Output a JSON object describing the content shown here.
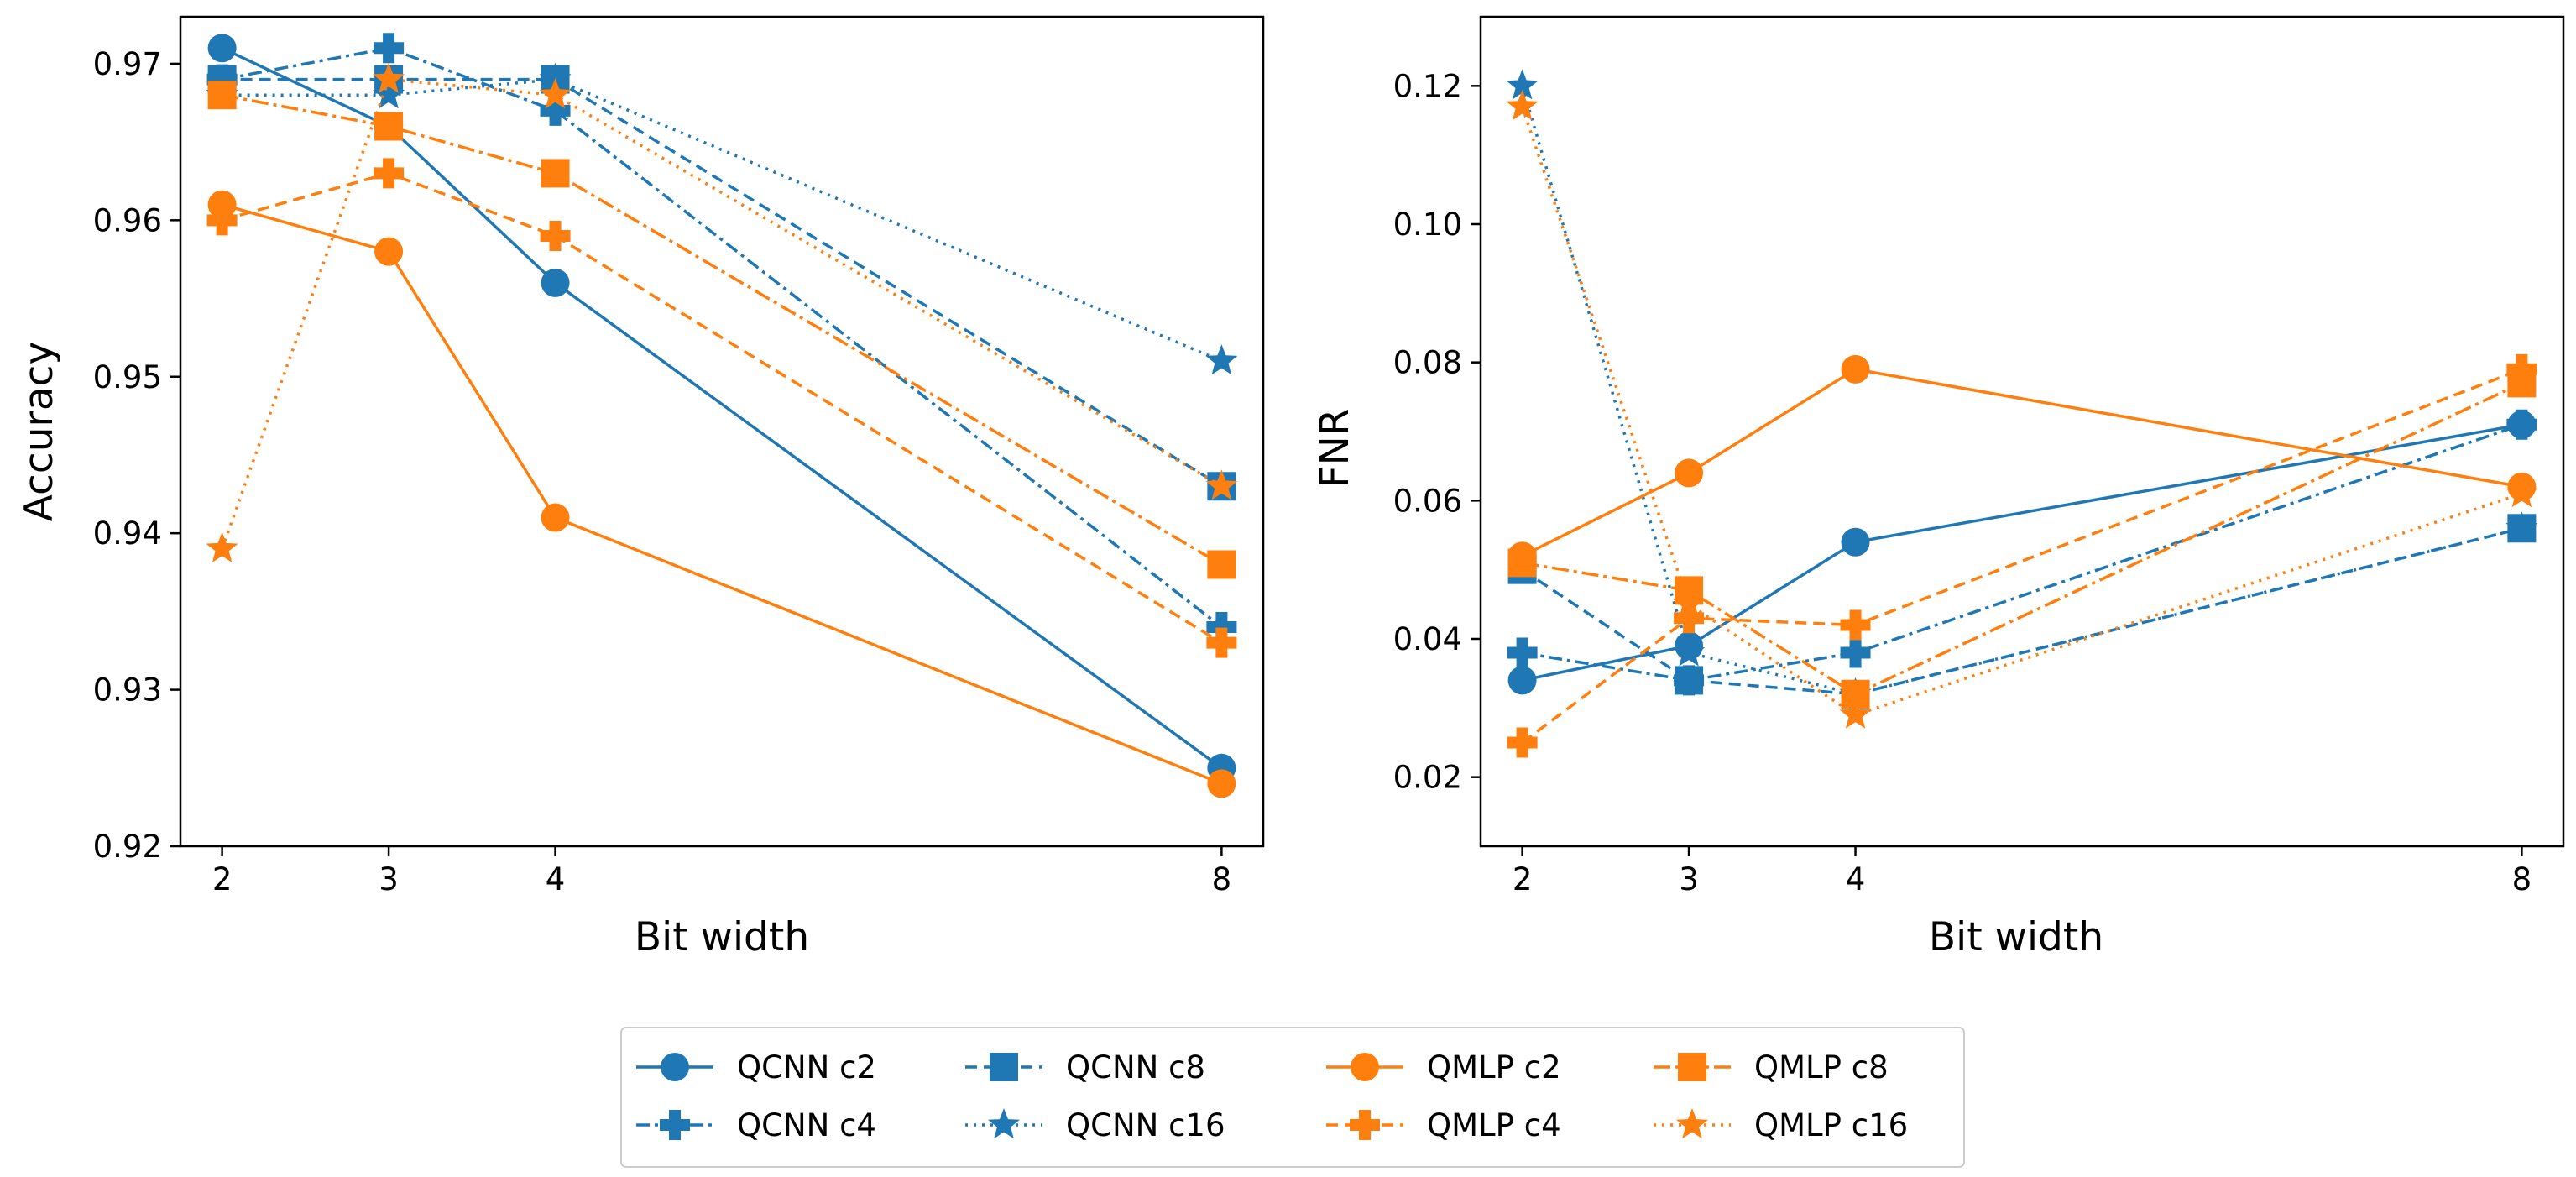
{
  "colors": {
    "QCNN": "#1f77b4",
    "QMLP": "#ff7f0e"
  },
  "chart_data": [
    {
      "type": "line",
      "xlabel": "Bit width",
      "ylabel": "Accuracy",
      "x": [
        2,
        3,
        4,
        8
      ],
      "xticks": [
        "2",
        "3",
        "4",
        "8"
      ],
      "ylim": [
        0.92,
        0.973
      ],
      "yticks": [
        "0.92",
        "0.93",
        "0.94",
        "0.95",
        "0.96",
        "0.97"
      ],
      "series": [
        {
          "name": "QCNN c2",
          "values": [
            0.971,
            0.966,
            0.956,
            0.925
          ]
        },
        {
          "name": "QCNN c4",
          "values": [
            0.969,
            0.971,
            0.967,
            0.934
          ]
        },
        {
          "name": "QCNN c8",
          "values": [
            0.969,
            0.969,
            0.969,
            0.943
          ]
        },
        {
          "name": "QCNN c16",
          "values": [
            0.968,
            0.968,
            0.969,
            0.951
          ]
        },
        {
          "name": "QMLP c2",
          "values": [
            0.961,
            0.958,
            0.941,
            0.924
          ]
        },
        {
          "name": "QMLP c4",
          "values": [
            0.96,
            0.963,
            0.959,
            0.933
          ]
        },
        {
          "name": "QMLP c8",
          "values": [
            0.968,
            0.966,
            0.963,
            0.938
          ]
        },
        {
          "name": "QMLP c16",
          "values": [
            0.939,
            0.969,
            0.968,
            0.943
          ]
        }
      ]
    },
    {
      "type": "line",
      "xlabel": "Bit width",
      "ylabel": "FNR",
      "x": [
        2,
        3,
        4,
        8
      ],
      "xticks": [
        "2",
        "3",
        "4",
        "8"
      ],
      "ylim": [
        0.01,
        0.13
      ],
      "yticks": [
        "0.02",
        "0.04",
        "0.06",
        "0.08",
        "0.10",
        "0.12"
      ],
      "series": [
        {
          "name": "QCNN c2",
          "values": [
            0.034,
            0.039,
            0.054,
            0.071
          ]
        },
        {
          "name": "QCNN c4",
          "values": [
            0.038,
            0.034,
            0.038,
            0.071
          ]
        },
        {
          "name": "QCNN c8",
          "values": [
            0.05,
            0.034,
            0.032,
            0.056
          ]
        },
        {
          "name": "QCNN c16",
          "values": [
            0.12,
            0.038,
            0.032,
            0.056
          ]
        },
        {
          "name": "QMLP c2",
          "values": [
            0.052,
            0.064,
            0.079,
            0.062
          ]
        },
        {
          "name": "QMLP c4",
          "values": [
            0.025,
            0.043,
            0.042,
            0.079
          ]
        },
        {
          "name": "QMLP c8",
          "values": [
            0.051,
            0.047,
            0.032,
            0.077
          ]
        },
        {
          "name": "QMLP c16",
          "values": [
            0.117,
            0.045,
            0.029,
            0.061
          ]
        }
      ]
    }
  ],
  "legend": {
    "placement": "bottom-center",
    "entries": [
      "QCNN c2",
      "QCNN c4",
      "QCNN c8",
      "QCNN c16",
      "QMLP c2",
      "QMLP c4",
      "QMLP c8",
      "QMLP c16"
    ]
  }
}
